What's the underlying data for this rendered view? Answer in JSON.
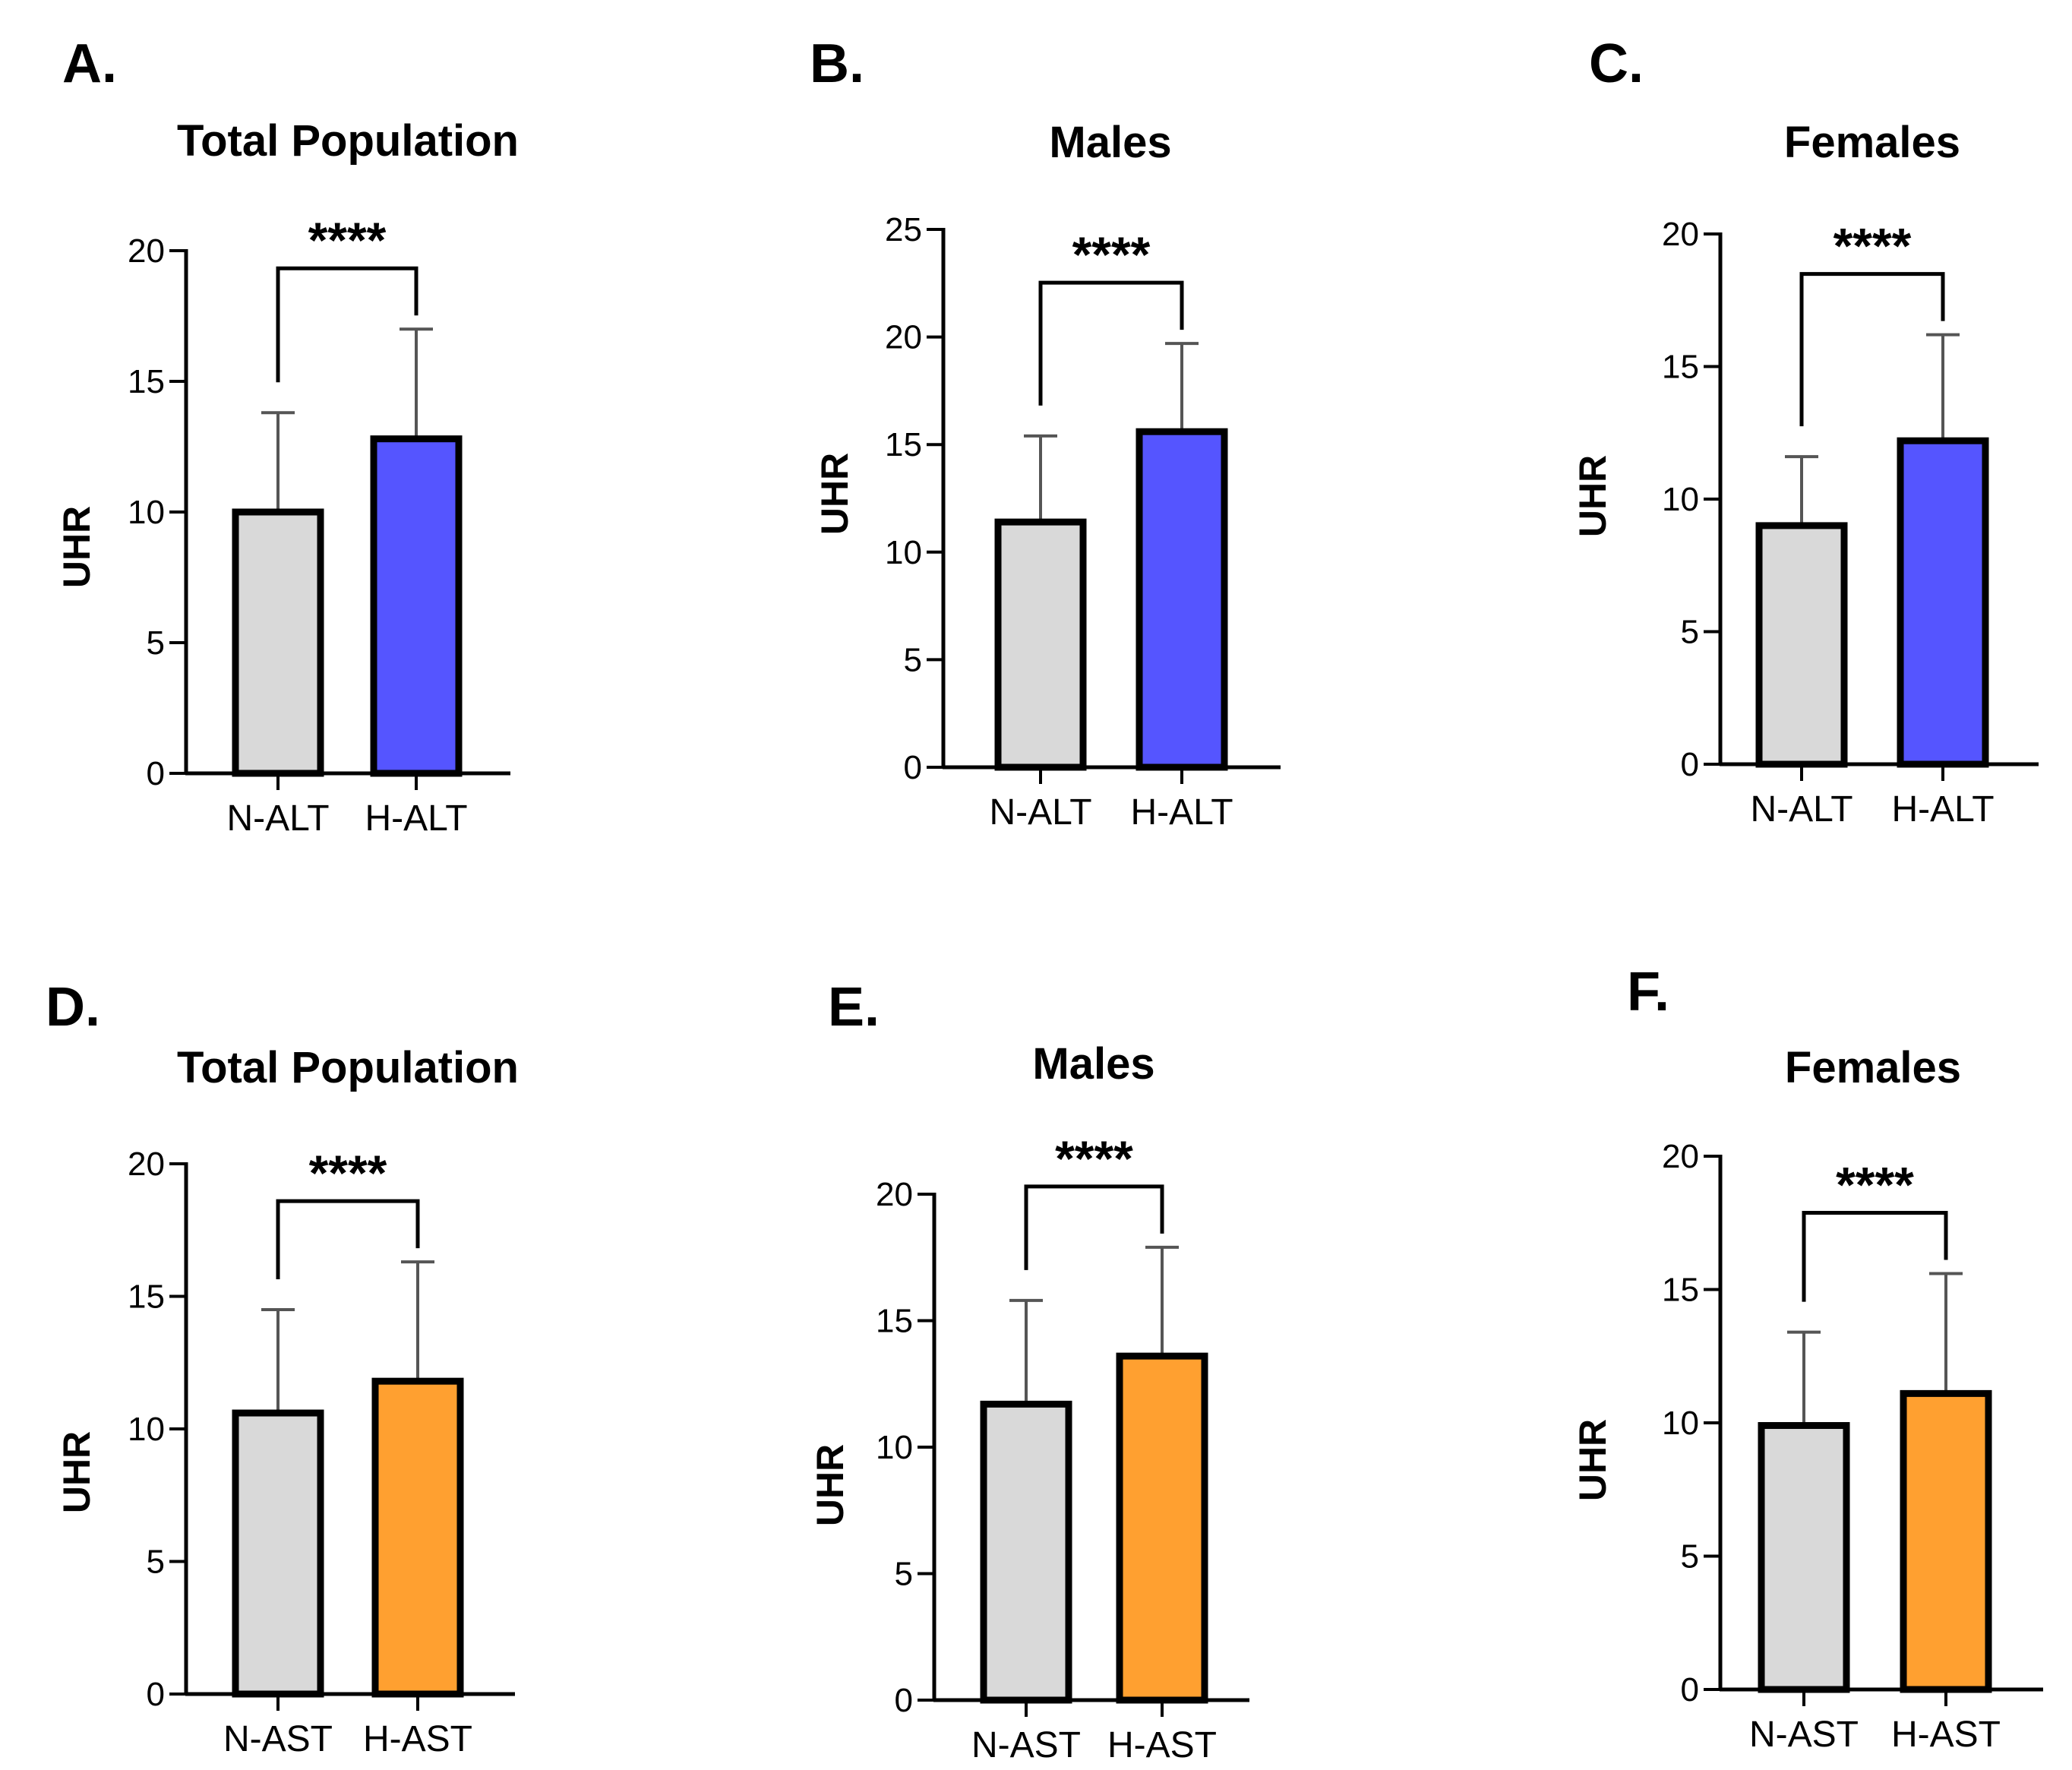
{
  "chart_data": [
    {
      "type": "bar",
      "panel": "A.",
      "title": "Total Population",
      "ylabel": "UHR",
      "ylim": [
        0,
        20
      ],
      "yticks": [
        "0",
        "5",
        "10",
        "15",
        "20"
      ],
      "categories": [
        "N-ALT",
        "H-ALT"
      ],
      "values": [
        10.0,
        12.8
      ],
      "errors": [
        3.8,
        4.2
      ],
      "colors": [
        "#d9d9d9",
        "#5555ff"
      ],
      "significance": "****"
    },
    {
      "type": "bar",
      "panel": "B.",
      "title": "Males",
      "ylabel": "UHR",
      "ylim": [
        0,
        25
      ],
      "yticks": [
        "0",
        "5",
        "10",
        "15",
        "20",
        "25"
      ],
      "categories": [
        "N-ALT",
        "H-ALT"
      ],
      "values": [
        11.4,
        15.6
      ],
      "errors": [
        4.0,
        4.1
      ],
      "colors": [
        "#d9d9d9",
        "#5555ff"
      ],
      "significance": "****"
    },
    {
      "type": "bar",
      "panel": "C.",
      "title": "Females",
      "ylabel": "UHR",
      "ylim": [
        0,
        20
      ],
      "yticks": [
        "0",
        "5",
        "10",
        "15",
        "20"
      ],
      "categories": [
        "N-ALT",
        "H-ALT"
      ],
      "values": [
        9.0,
        12.2
      ],
      "errors": [
        2.6,
        4.0
      ],
      "colors": [
        "#d9d9d9",
        "#5555ff"
      ],
      "significance": "****"
    },
    {
      "type": "bar",
      "panel": "D.",
      "title": "Total Population",
      "ylabel": "UHR",
      "ylim": [
        0,
        20
      ],
      "yticks": [
        "0",
        "5",
        "10",
        "15",
        "20"
      ],
      "categories": [
        "N-AST",
        "H-AST"
      ],
      "values": [
        10.6,
        11.8
      ],
      "errors": [
        3.9,
        4.5
      ],
      "colors": [
        "#d9d9d9",
        "#ffa030"
      ],
      "significance": "****"
    },
    {
      "type": "bar",
      "panel": "E.",
      "title": "Males",
      "ylabel": "UHR",
      "ylim": [
        0,
        20
      ],
      "yticks": [
        "0",
        "5",
        "10",
        "15",
        "20"
      ],
      "categories": [
        "N-AST",
        "H-AST"
      ],
      "values": [
        11.7,
        13.6
      ],
      "errors": [
        4.1,
        4.3
      ],
      "colors": [
        "#d9d9d9",
        "#ffa030"
      ],
      "significance": "****"
    },
    {
      "type": "bar",
      "panel": "F.",
      "title": "Females",
      "ylabel": "UHR",
      "ylim": [
        0,
        20
      ],
      "yticks": [
        "0",
        "5",
        "10",
        "15",
        "20"
      ],
      "categories": [
        "N-AST",
        "H-AST"
      ],
      "values": [
        9.9,
        11.1
      ],
      "errors": [
        3.5,
        4.5
      ],
      "colors": [
        "#d9d9d9",
        "#ffa030"
      ],
      "significance": "****"
    }
  ]
}
